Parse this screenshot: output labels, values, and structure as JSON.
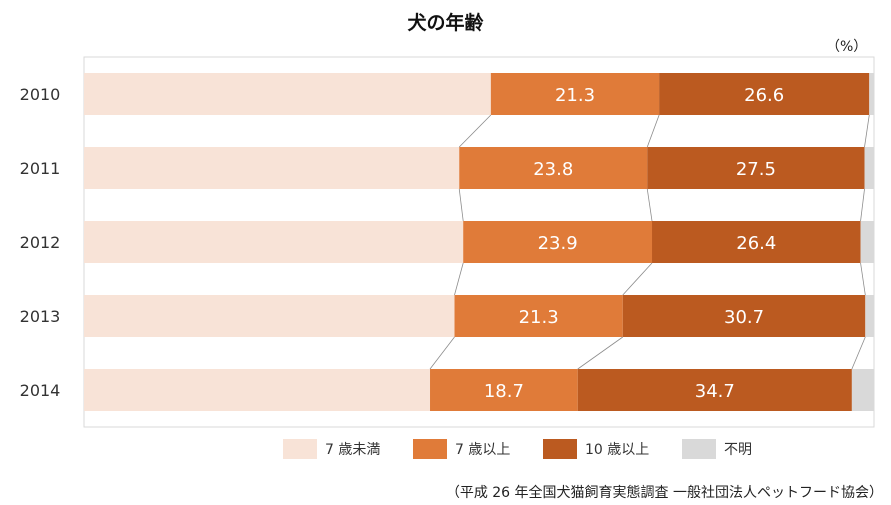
{
  "chart_data": {
    "type": "bar",
    "orientation": "horizontal",
    "stacked": true,
    "title": "犬の年齢",
    "unit_label": "（%）",
    "categories": [
      "2010",
      "2011",
      "2012",
      "2013",
      "2014"
    ],
    "xlim": [
      0,
      100
    ],
    "series": [
      {
        "name": "7 歳未満",
        "color": "#f8e3d7",
        "values": [
          51.5,
          47.5,
          48.0,
          46.9,
          43.8
        ],
        "show_labels": false
      },
      {
        "name": "7 歳以上",
        "color": "#e07b39",
        "values": [
          21.3,
          23.8,
          23.9,
          21.3,
          18.7
        ],
        "show_labels": true
      },
      {
        "name": "10 歳以上",
        "color": "#bb5a20",
        "values": [
          26.6,
          27.5,
          26.4,
          30.7,
          34.7
        ],
        "show_labels": true
      },
      {
        "name": "不明",
        "color": "#d9d9d9",
        "values": [
          0.6,
          1.2,
          1.7,
          1.1,
          2.8
        ],
        "show_labels": false
      }
    ],
    "legend_position": "bottom",
    "grid": false,
    "series_lines": true,
    "source": "（平成 26 年全国犬猫飼育実態調査  一般社団法人ペットフード協会）"
  }
}
